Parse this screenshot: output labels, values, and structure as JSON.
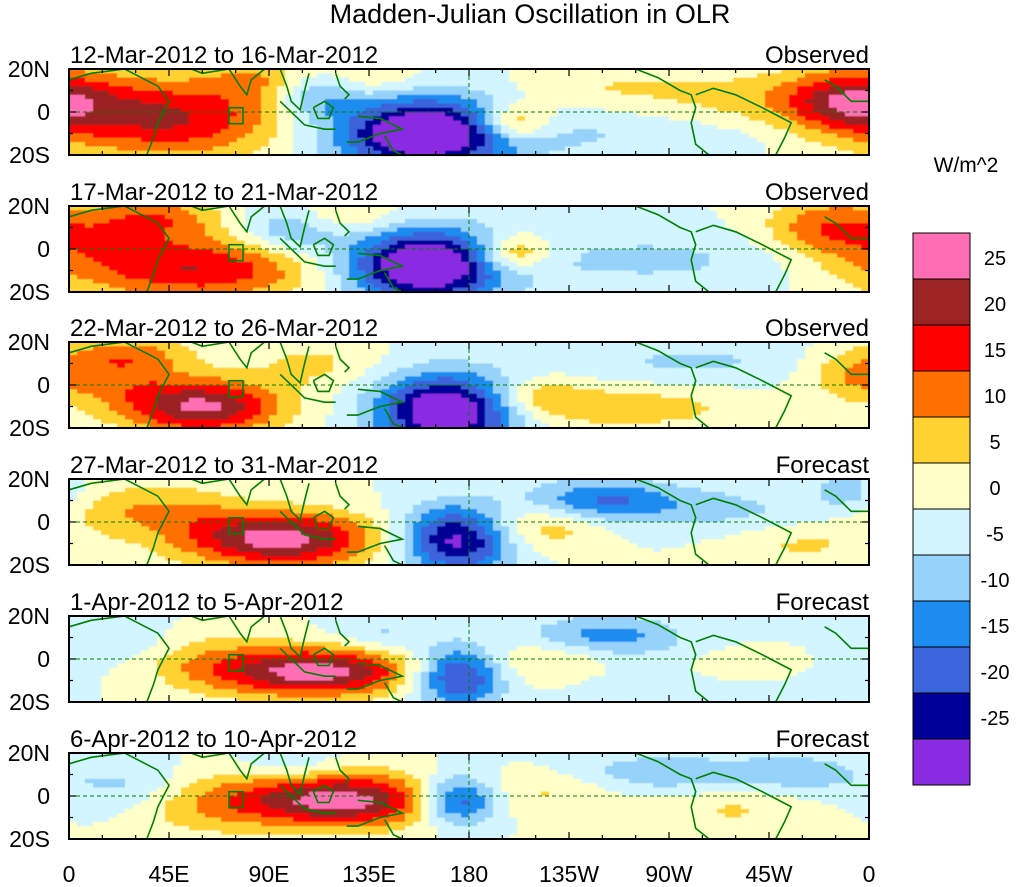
{
  "title": "Madden-Julian Oscillation in OLR",
  "colorbar": {
    "unit": "W/m^2",
    "ticks": [
      "25",
      "20",
      "15",
      "10",
      "5",
      "0",
      "-5",
      "-10",
      "-15",
      "-20",
      "-25"
    ],
    "colors": [
      "#ff6eb4",
      "#9b2323",
      "#ff0000",
      "#ff7000",
      "#ffd232",
      "#ffffc8",
      "#d2f5ff",
      "#96d2fa",
      "#1e8cf0",
      "#3c64dc",
      "#000096",
      "#8a2be2"
    ]
  },
  "colors": {
    "coast": "#008000",
    "equator_line": "#008000",
    "dateline": "#008000"
  },
  "panels": [
    {
      "date": "12-Mar-2012 to 16-Mar-2012",
      "status": "Observed"
    },
    {
      "date": "17-Mar-2012 to 21-Mar-2012",
      "status": "Observed"
    },
    {
      "date": "22-Mar-2012 to 26-Mar-2012",
      "status": "Observed"
    },
    {
      "date": "27-Mar-2012 to 31-Mar-2012",
      "status": "Forecast"
    },
    {
      "date": "1-Apr-2012 to 5-Apr-2012",
      "status": "Forecast"
    },
    {
      "date": "6-Apr-2012 to 10-Apr-2012",
      "status": "Forecast"
    }
  ],
  "lat_labels": [
    "20N",
    "0",
    "20S"
  ],
  "lon_labels": [
    "0",
    "45E",
    "90E",
    "135E",
    "180",
    "135W",
    "90W",
    "45W",
    "0"
  ],
  "lon_values": [
    0,
    45,
    90,
    135,
    180,
    225,
    270,
    315,
    360
  ],
  "lat_range": [
    -20,
    20
  ]
}
